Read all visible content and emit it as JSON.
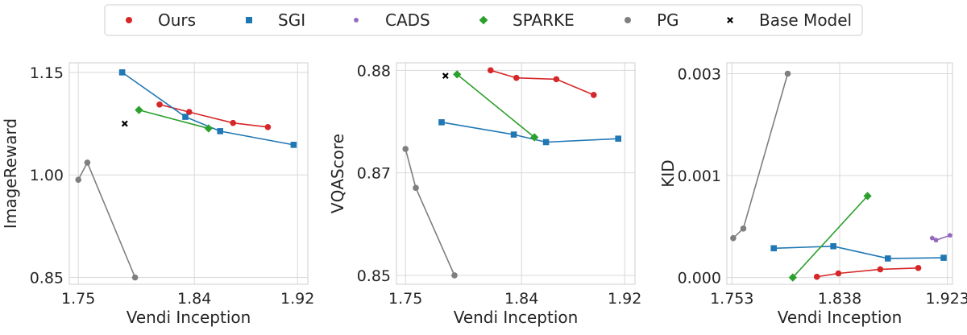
{
  "legend": {
    "items": [
      {
        "label": "Ours",
        "color": "#d62728",
        "marker": "circle"
      },
      {
        "label": "SGI",
        "color": "#1f77b4",
        "marker": "square"
      },
      {
        "label": "CADS",
        "color": "#9467bd",
        "marker": "pentagon"
      },
      {
        "label": "SPARKE",
        "color": "#2ca02c",
        "marker": "diamond"
      },
      {
        "label": "PG",
        "color": "#7f7f7f",
        "marker": "circle"
      },
      {
        "label": "Base Model",
        "color": "#000000",
        "marker": "x"
      }
    ]
  },
  "chart_data": [
    {
      "type": "line",
      "xlabel": "Vendi Inception",
      "ylabel": "ImageReward",
      "xlim": [
        1.743,
        1.928
      ],
      "ylim": [
        0.84,
        1.164
      ],
      "xticks": [
        1.75,
        1.84,
        1.92
      ],
      "xtick_labels": [
        "1.75",
        "1.84",
        "1.92"
      ],
      "yticks": [
        0.85,
        1.0,
        1.15
      ],
      "ytick_labels": [
        "0.85",
        "1.00",
        "1.15"
      ],
      "grid": true,
      "series": [
        {
          "name": "Ours",
          "x": [
            1.813,
            1.836,
            1.87,
            1.897
          ],
          "y": [
            1.103,
            1.092,
            1.076,
            1.07
          ]
        },
        {
          "name": "SGI",
          "x": [
            1.784,
            1.833,
            1.86,
            1.917
          ],
          "y": [
            1.15,
            1.085,
            1.064,
            1.044
          ]
        },
        {
          "name": "SPARKE",
          "x": [
            1.797,
            1.851
          ],
          "y": [
            1.095,
            1.068
          ]
        },
        {
          "name": "PG",
          "x": [
            1.75,
            1.757,
            1.794
          ],
          "y": [
            0.993,
            1.018,
            0.85
          ]
        },
        {
          "name": "Base Model",
          "x": [
            1.786
          ],
          "y": [
            1.075
          ]
        }
      ]
    },
    {
      "type": "line",
      "xlabel": "Vendi Inception",
      "ylabel": "VQAScore",
      "xlim": [
        1.743,
        1.928
      ],
      "ylim": [
        0.8487,
        0.8811
      ],
      "xticks": [
        1.75,
        1.84,
        1.92
      ],
      "xtick_labels": [
        "1.75",
        "1.84",
        "1.92"
      ],
      "yticks": [
        0.85,
        0.865,
        0.88
      ],
      "ytick_labels": [
        "0.85",
        "0.87",
        "0.88"
      ],
      "grid": true,
      "series": [
        {
          "name": "Ours",
          "x": [
            1.816,
            1.836,
            1.867,
            1.896
          ],
          "y": [
            0.88,
            0.8789,
            0.8787,
            0.8764
          ]
        },
        {
          "name": "SGI",
          "x": [
            1.778,
            1.834,
            1.859,
            1.915
          ],
          "y": [
            0.8724,
            0.8706,
            0.8695,
            0.87
          ]
        },
        {
          "name": "SPARKE",
          "x": [
            1.79,
            1.85
          ],
          "y": [
            0.8794,
            0.8702
          ]
        },
        {
          "name": "PG",
          "x": [
            1.75,
            1.758,
            1.788
          ],
          "y": [
            0.8685,
            0.8628,
            0.85
          ]
        },
        {
          "name": "Base Model",
          "x": [
            1.781
          ],
          "y": [
            0.8792
          ]
        }
      ]
    },
    {
      "type": "line",
      "xlabel": "Vendi Inception",
      "ylabel": "KID",
      "xlim": [
        1.749,
        1.927
      ],
      "ylim": [
        -0.0001,
        0.00316
      ],
      "xticks": [
        1.753,
        1.838,
        1.923
      ],
      "xtick_labels": [
        "1.753",
        "1.838",
        "1.923"
      ],
      "yticks": [
        0.0,
        0.0015,
        0.003
      ],
      "ytick_labels": [
        "0.000",
        "0.001",
        "0.003"
      ],
      "grid": true,
      "series": [
        {
          "name": "Ours",
          "x": [
            1.82,
            1.837,
            1.87,
            1.9
          ],
          "y": [
            1e-05,
            6e-05,
            0.00012,
            0.00014
          ]
        },
        {
          "name": "SGI",
          "x": [
            1.786,
            1.833,
            1.876,
            1.92
          ],
          "y": [
            0.00043,
            0.00046,
            0.00028,
            0.00029
          ]
        },
        {
          "name": "CADS",
          "x": [
            1.911,
            1.914,
            1.925
          ],
          "y": [
            0.00058,
            0.00055,
            0.00062
          ]
        },
        {
          "name": "SPARKE",
          "x": [
            1.801,
            1.86
          ],
          "y": [
            0.0,
            0.0012
          ]
        },
        {
          "name": "PG",
          "x": [
            1.754,
            1.762,
            1.797
          ],
          "y": [
            0.00058,
            0.00072,
            0.003
          ]
        }
      ]
    }
  ]
}
